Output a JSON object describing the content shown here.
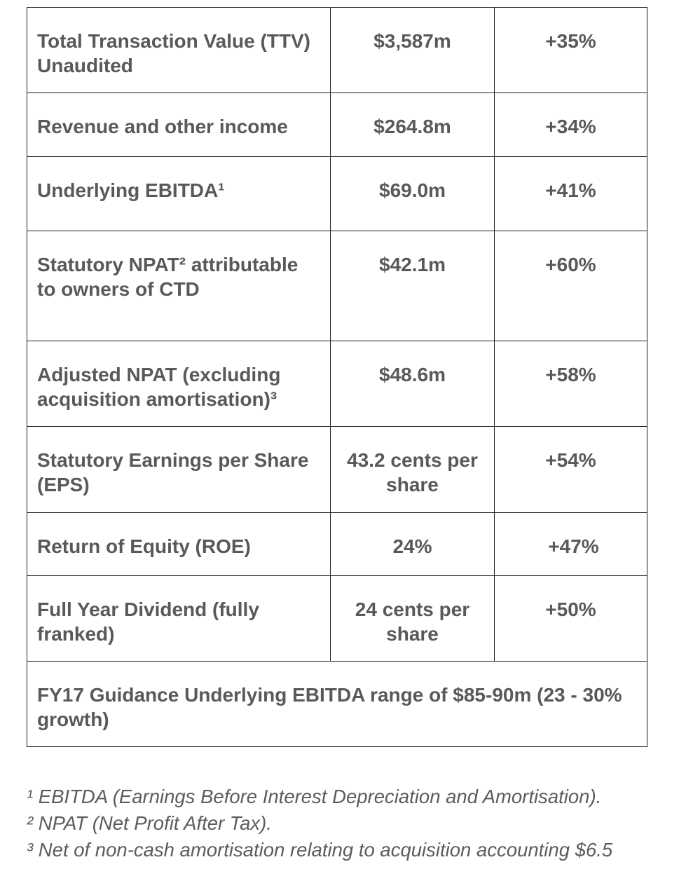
{
  "rows": [
    {
      "metric": "Total Transaction Value (TTV) Unaudited",
      "value": "$3,587m",
      "change": "+35%"
    },
    {
      "metric": "Revenue and other income",
      "value": "$264.8m",
      "change": "+34%"
    },
    {
      "metric": "Underlying EBITDA¹",
      "value": "$69.0m",
      "change": "+41%"
    },
    {
      "metric": "Statutory NPAT² attributable to owners of CTD",
      "value": "$42.1m",
      "change": "+60%"
    },
    {
      "metric": "Adjusted NPAT (excluding acquisition amortisation)³",
      "value": "$48.6m",
      "change": "+58%"
    },
    {
      "metric": "Statutory Earnings per Share (EPS)",
      "value": "43.2 cents per share",
      "change": "+54%"
    },
    {
      "metric": "Return of Equity (ROE)",
      "value": "24%",
      "change": "+47%"
    },
    {
      "metric": "Full Year Dividend (fully franked)",
      "value": "24 cents per share",
      "change": "+50%"
    }
  ],
  "guidance": "FY17 Guidance Underlying EBITDA range of $85-90m (23 - 30% growth)",
  "footnotes": [
    "¹ EBITDA (Earnings Before Interest Depreciation and Amortisation).",
    "² NPAT (Net Profit After Tax).",
    "³ Net of non-cash amortisation relating to acquisition accounting $6.5"
  ]
}
